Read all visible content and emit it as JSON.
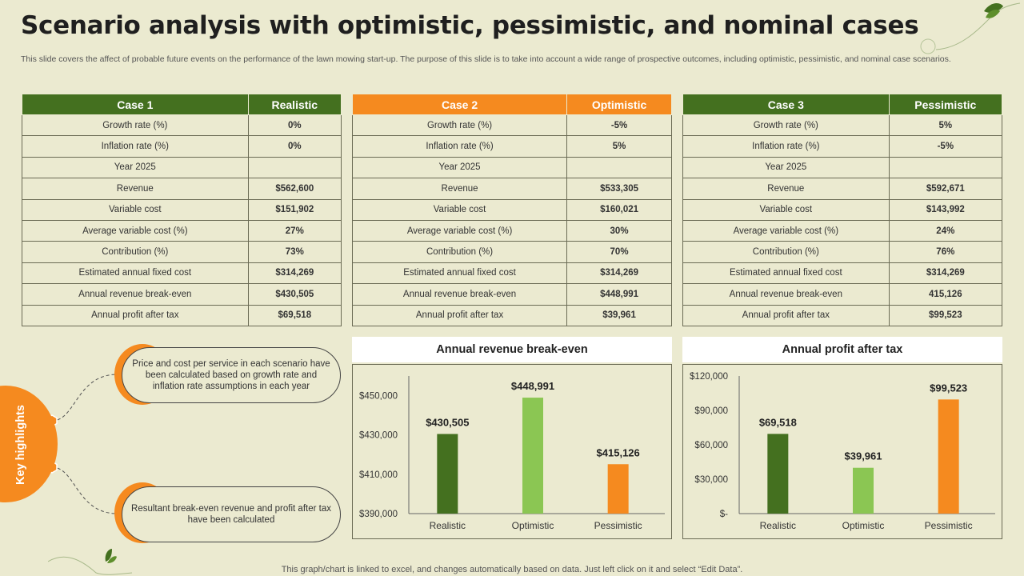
{
  "title": "Scenario analysis with optimistic, pessimistic, and nominal cases",
  "subtitle": "This slide covers the affect of probable future events on the performance of the lawn mowing start-up. The purpose of this slide is to take into account a wide range of prospective outcomes, including optimistic, pessimistic, and nominal case scenarios.",
  "row_labels": [
    "Growth rate (%)",
    "Inflation rate (%)",
    "Year 2025",
    "Revenue",
    "Variable cost",
    "Average variable cost (%)",
    "Contribution (%)",
    "Estimated annual fixed cost",
    "Annual revenue break-even",
    "Annual profit after tax"
  ],
  "cases": [
    {
      "case": "Case 1",
      "name": "Realistic",
      "color": "#44701f",
      "values": [
        "0%",
        "0%",
        "",
        "$562,600",
        "$151,902",
        "27%",
        "73%",
        "$314,269",
        "$430,505",
        "$69,518"
      ]
    },
    {
      "case": "Case 2",
      "name": "Optimistic",
      "color": "#f58a1f",
      "values": [
        "-5%",
        "5%",
        "",
        "$533,305",
        "$160,021",
        "30%",
        "70%",
        "$314,269",
        "$448,991",
        "$39,961"
      ]
    },
    {
      "case": "Case 3",
      "name": "Pessimistic",
      "color": "#44701f",
      "values": [
        "5%",
        "-5%",
        "",
        "$592,671",
        "$143,992",
        "24%",
        "76%",
        "$314,269",
        "415,126",
        "$99,523"
      ]
    }
  ],
  "key_highlights": {
    "label": "Key highlights",
    "points": [
      "Price and cost per service in each scenario have been calculated based on growth rate and inflation rate assumptions in each year",
      "Resultant break-even revenue and profit after tax have been calculated"
    ]
  },
  "footer": "This graph/chart is linked to excel,  and changes automatically based on data. Just left click on it and select “Edit Data”.",
  "colors": {
    "dark_green": "#44701f",
    "light_green": "#8bc653",
    "orange": "#f58a1f"
  },
  "chart_data": [
    {
      "type": "bar",
      "title": "Annual revenue break-even",
      "categories": [
        "Realistic",
        "Optimistic",
        "Pessimistic"
      ],
      "values": [
        430505,
        448991,
        415126
      ],
      "data_labels": [
        "$430,505",
        "$448,991",
        "$415,126"
      ],
      "bar_colors": [
        "#44701f",
        "#8bc653",
        "#f58a1f"
      ],
      "ylim": [
        390000,
        460000
      ],
      "yticks": [
        390000,
        410000,
        430000,
        450000
      ],
      "ytick_labels": [
        "$390,000",
        "$410,000",
        "$430,000",
        "$450,000"
      ],
      "grid": false,
      "legend": "none"
    },
    {
      "type": "bar",
      "title": "Annual profit after tax",
      "categories": [
        "Realistic",
        "Optimistic",
        "Pessimistic"
      ],
      "values": [
        69518,
        39961,
        99523
      ],
      "data_labels": [
        "$69,518",
        "$39,961",
        "$99,523"
      ],
      "bar_colors": [
        "#44701f",
        "#8bc653",
        "#f58a1f"
      ],
      "ylim": [
        0,
        120000
      ],
      "yticks": [
        0,
        30000,
        60000,
        90000,
        120000
      ],
      "ytick_labels": [
        "$-",
        "$30,000",
        "$60,000",
        "$90,000",
        "$120,000"
      ],
      "grid": false,
      "legend": "none"
    }
  ]
}
